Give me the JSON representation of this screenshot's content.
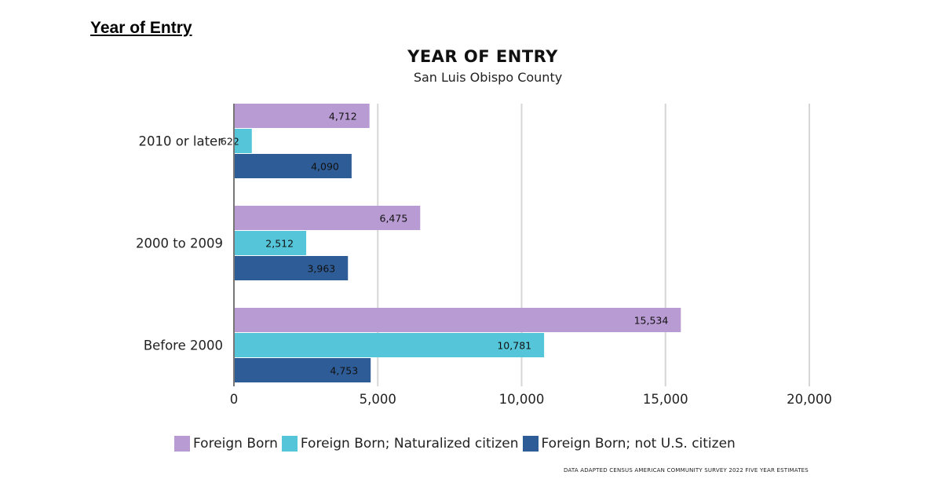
{
  "page": {
    "heading": "Year of Entry",
    "source_note": "DATA ADAPTED CENSUS AMERICAN COMMUNITY SURVEY 2022 FIVE YEAR ESTIMATES"
  },
  "chart_data": {
    "type": "bar",
    "orientation": "horizontal",
    "title": "YEAR OF ENTRY",
    "subtitle": "San Luis Obispo County",
    "categories": [
      "2010 or later",
      "2000 to 2009",
      "Before 2000"
    ],
    "series": [
      {
        "name": "Foreign Born",
        "color": "#b99bd3",
        "values": [
          4712,
          6475,
          15534
        ],
        "labels": [
          "4,712",
          "6,475",
          "15,534"
        ]
      },
      {
        "name": "Foreign Born; Naturalized citizen",
        "color": "#55c6d9",
        "values": [
          622,
          2512,
          10781
        ],
        "labels": [
          "622",
          "2,512",
          "10,781"
        ]
      },
      {
        "name": "Foreign Born; not U.S. citizen",
        "color": "#2e5c96",
        "values": [
          4090,
          3963,
          4753
        ],
        "labels": [
          "4,090",
          "3,963",
          "4,753"
        ]
      }
    ],
    "xlim": [
      0,
      20000
    ],
    "x_ticks": [
      0,
      5000,
      10000,
      15000,
      20000
    ],
    "x_tick_labels": [
      "0",
      "5,000",
      "10,000",
      "15,000",
      "20,000"
    ],
    "grid": true,
    "legend_position": "bottom"
  }
}
